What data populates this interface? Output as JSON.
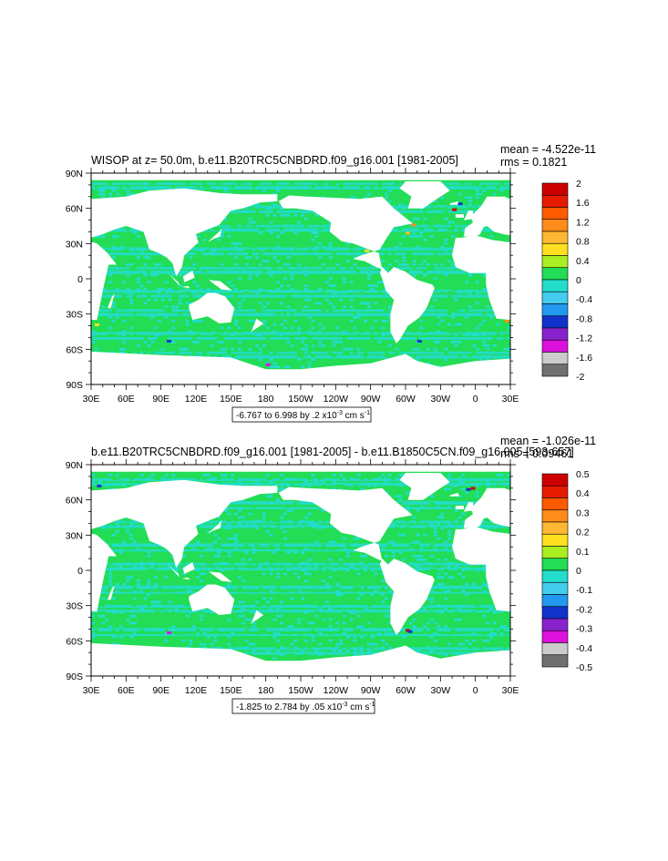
{
  "chart_data": [
    {
      "type": "heatmap",
      "title": "WISOP at z=  50.0m, b.e11.B20TRC5CNBDRD.f09_g16.001 [1981-2005]",
      "stats": {
        "mean": "mean = -4.522e-11",
        "rms": "rms = 0.1821"
      },
      "x_ticks": [
        "30E",
        "60E",
        "90E",
        "120E",
        "150E",
        "180",
        "150W",
        "120W",
        "90W",
        "60W",
        "30W",
        "0",
        "30E"
      ],
      "y_ticks": [
        "90N",
        "60N",
        "30N",
        "0",
        "30S",
        "60S",
        "90S"
      ],
      "xlim": [
        30,
        390
      ],
      "ylim": [
        -90,
        90
      ],
      "colorbar": {
        "labels": [
          "2",
          "1.6",
          "1.2",
          "0.8",
          "0.4",
          "0",
          "-0.4",
          "-0.8",
          "-1.2",
          "-1.6",
          "-2"
        ],
        "colors": [
          "#cc0000",
          "#e61a00",
          "#ff5a00",
          "#ff8c1a",
          "#ffb833",
          "#ffe020",
          "#aaee22",
          "#22dd55",
          "#22ddcc",
          "#44ccee",
          "#2299ee",
          "#1133cc",
          "#8822cc",
          "#dd11dd",
          "#cccccc",
          "#707070"
        ]
      },
      "caption": {
        "main": "-6.767 to 6.998 by .2 x10",
        "exp": "-3",
        "unit": " cm s",
        "unit_exp": "-1"
      }
    },
    {
      "type": "heatmap",
      "title": "b.e11.B20TRC5CNBDRD.f09_g16.001 [1981-2005] - b.e11.B1850C5CN.f09_g16.005 [593-657]",
      "stats": {
        "mean": "mean = -1.026e-11",
        "rms": "rms = 0.09461"
      },
      "x_ticks": [
        "30E",
        "60E",
        "90E",
        "120E",
        "150E",
        "180",
        "150W",
        "120W",
        "90W",
        "60W",
        "30W",
        "0",
        "30E"
      ],
      "y_ticks": [
        "90N",
        "60N",
        "30N",
        "0",
        "30S",
        "60S",
        "90S"
      ],
      "xlim": [
        30,
        390
      ],
      "ylim": [
        -90,
        90
      ],
      "colorbar": {
        "labels": [
          "0.5",
          "0.4",
          "0.3",
          "0.2",
          "0.1",
          "0",
          "-0.1",
          "-0.2",
          "-0.3",
          "-0.4",
          "-0.5"
        ],
        "colors": [
          "#cc0000",
          "#e61a00",
          "#ff5a00",
          "#ff8c1a",
          "#ffb833",
          "#ffe020",
          "#aaee22",
          "#22dd55",
          "#22ddcc",
          "#44ccee",
          "#2299ee",
          "#1133cc",
          "#8822cc",
          "#dd11dd",
          "#cccccc",
          "#707070"
        ]
      },
      "caption": {
        "main": "-1.825 to 2.784 by .05 x10",
        "exp": "-3",
        "unit": " cm s",
        "unit_exp": "-1"
      }
    }
  ],
  "colors": {
    "ocean_base": "#22dd55",
    "ocean_cyan": "#22ddcc",
    "land": "#ffffff"
  }
}
